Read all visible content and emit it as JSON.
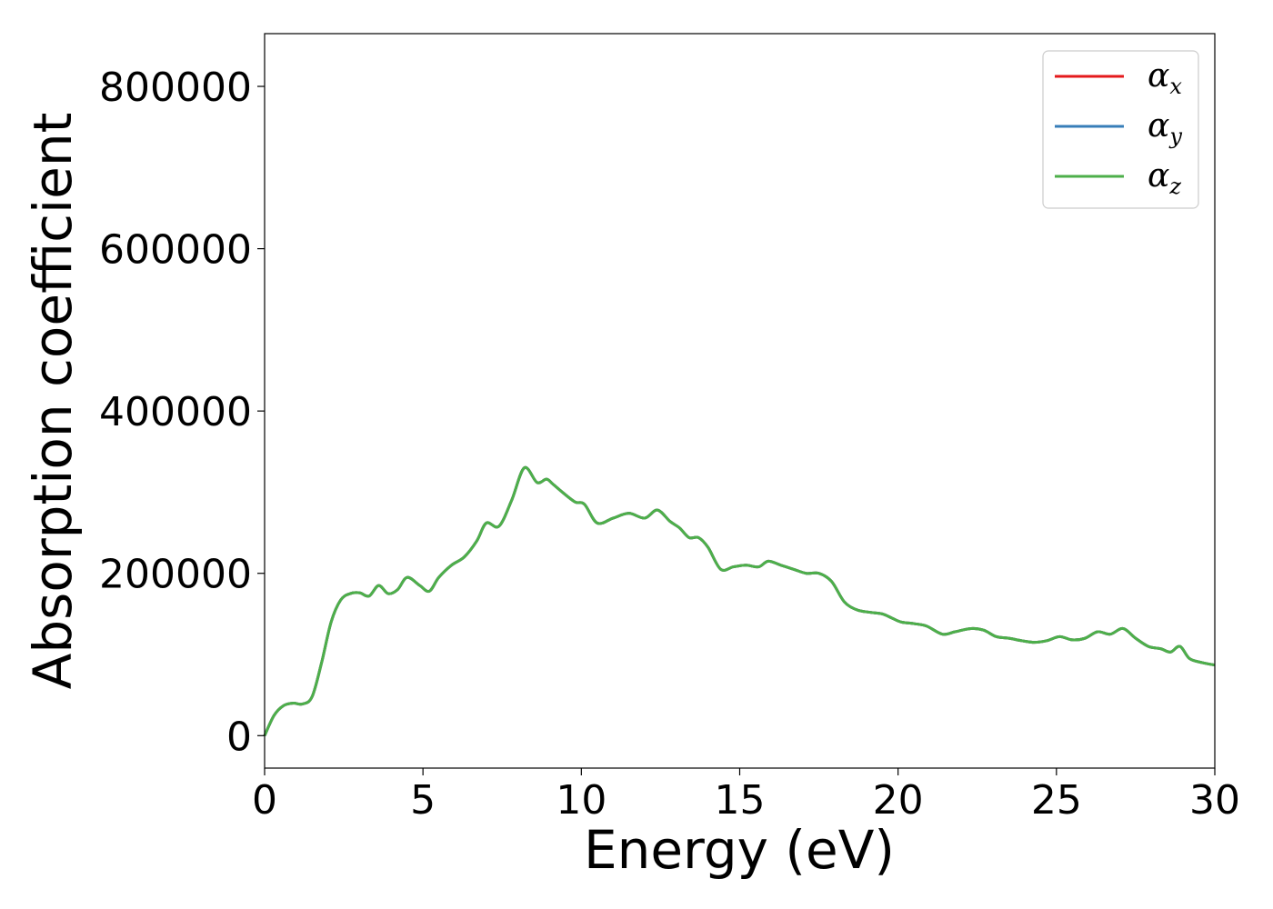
{
  "chart_data": {
    "type": "line",
    "title": "",
    "xlabel": "Energy (eV)",
    "ylabel": "Absorption coefficient",
    "xlim": [
      0,
      30
    ],
    "ylim": [
      -40000,
      865000
    ],
    "x_ticks": [
      0,
      5,
      10,
      15,
      20,
      25,
      30
    ],
    "x_tick_labels": [
      "0",
      "5",
      "10",
      "15",
      "20",
      "25",
      "30"
    ],
    "y_ticks": [
      0,
      200000,
      400000,
      600000,
      800000
    ],
    "y_tick_labels": [
      "0",
      "200000",
      "400000",
      "600000",
      "800000"
    ],
    "grid": false,
    "legend_position": "top-right",
    "x": [
      0,
      0.3,
      0.6,
      0.9,
      1.2,
      1.5,
      1.8,
      2.1,
      2.4,
      2.7,
      3.0,
      3.3,
      3.6,
      3.9,
      4.2,
      4.5,
      4.9,
      5.2,
      5.5,
      5.9,
      6.3,
      6.7,
      7.0,
      7.4,
      7.8,
      8.2,
      8.6,
      8.9,
      9.1,
      9.4,
      9.8,
      10.1,
      10.5,
      11.0,
      11.5,
      12.0,
      12.4,
      12.8,
      13.1,
      13.4,
      13.7,
      14.0,
      14.4,
      14.8,
      15.2,
      15.6,
      15.9,
      16.3,
      16.7,
      17.1,
      17.5,
      17.9,
      18.3,
      18.7,
      19.1,
      19.5,
      19.8,
      20.1,
      20.5,
      20.9,
      21.4,
      21.8,
      22.3,
      22.7,
      23.1,
      23.5,
      23.9,
      24.3,
      24.7,
      25.1,
      25.5,
      25.9,
      26.3,
      26.7,
      27.1,
      27.5,
      27.9,
      28.3,
      28.6,
      28.9,
      29.2,
      29.6,
      30.0
    ],
    "series": [
      {
        "name": "α_x",
        "legend_main": "α",
        "legend_sub": "x",
        "color": "#e41a1c",
        "values": [
          0,
          25000,
          37000,
          40000,
          39000,
          48000,
          90000,
          140000,
          167000,
          175000,
          176000,
          172000,
          185000,
          175000,
          180000,
          195000,
          185000,
          178000,
          195000,
          210000,
          220000,
          240000,
          262000,
          258000,
          290000,
          330000,
          312000,
          316000,
          310000,
          300000,
          288000,
          285000,
          262000,
          268000,
          274000,
          268000,
          278000,
          264000,
          256000,
          244000,
          244000,
          232000,
          205000,
          208000,
          210000,
          208000,
          215000,
          210000,
          205000,
          200000,
          200000,
          190000,
          165000,
          155000,
          152000,
          150000,
          145000,
          140000,
          138000,
          135000,
          125000,
          128000,
          132000,
          130000,
          122000,
          120000,
          117000,
          115000,
          117000,
          122000,
          118000,
          120000,
          128000,
          125000,
          132000,
          120000,
          110000,
          107000,
          103000,
          110000,
          95000,
          90000,
          87000
        ]
      },
      {
        "name": "α_y",
        "legend_main": "α",
        "legend_sub": "y",
        "color": "#377eb8",
        "values": [
          0,
          25000,
          37000,
          40000,
          39000,
          48000,
          90000,
          140000,
          167000,
          175000,
          176000,
          172000,
          185000,
          175000,
          180000,
          195000,
          185000,
          178000,
          195000,
          210000,
          220000,
          240000,
          262000,
          258000,
          290000,
          330000,
          312000,
          316000,
          310000,
          300000,
          288000,
          285000,
          262000,
          268000,
          274000,
          268000,
          278000,
          264000,
          256000,
          244000,
          244000,
          232000,
          205000,
          208000,
          210000,
          208000,
          215000,
          210000,
          205000,
          200000,
          200000,
          190000,
          165000,
          155000,
          152000,
          150000,
          145000,
          140000,
          138000,
          135000,
          125000,
          128000,
          132000,
          130000,
          122000,
          120000,
          117000,
          115000,
          117000,
          122000,
          118000,
          120000,
          128000,
          125000,
          132000,
          120000,
          110000,
          107000,
          103000,
          110000,
          95000,
          90000,
          87000
        ]
      },
      {
        "name": "α_z",
        "legend_main": "α",
        "legend_sub": "z",
        "color": "#4daf4a",
        "values": [
          0,
          25000,
          37000,
          40000,
          39000,
          48000,
          90000,
          140000,
          167000,
          175000,
          176000,
          172000,
          185000,
          175000,
          180000,
          195000,
          185000,
          178000,
          195000,
          210000,
          220000,
          240000,
          262000,
          258000,
          290000,
          330000,
          312000,
          316000,
          310000,
          300000,
          288000,
          285000,
          262000,
          268000,
          274000,
          268000,
          278000,
          264000,
          256000,
          244000,
          244000,
          232000,
          205000,
          208000,
          210000,
          208000,
          215000,
          210000,
          205000,
          200000,
          200000,
          190000,
          165000,
          155000,
          152000,
          150000,
          145000,
          140000,
          138000,
          135000,
          125000,
          128000,
          132000,
          130000,
          122000,
          120000,
          117000,
          115000,
          117000,
          122000,
          118000,
          120000,
          128000,
          125000,
          132000,
          120000,
          110000,
          107000,
          103000,
          110000,
          95000,
          90000,
          87000
        ]
      }
    ]
  }
}
